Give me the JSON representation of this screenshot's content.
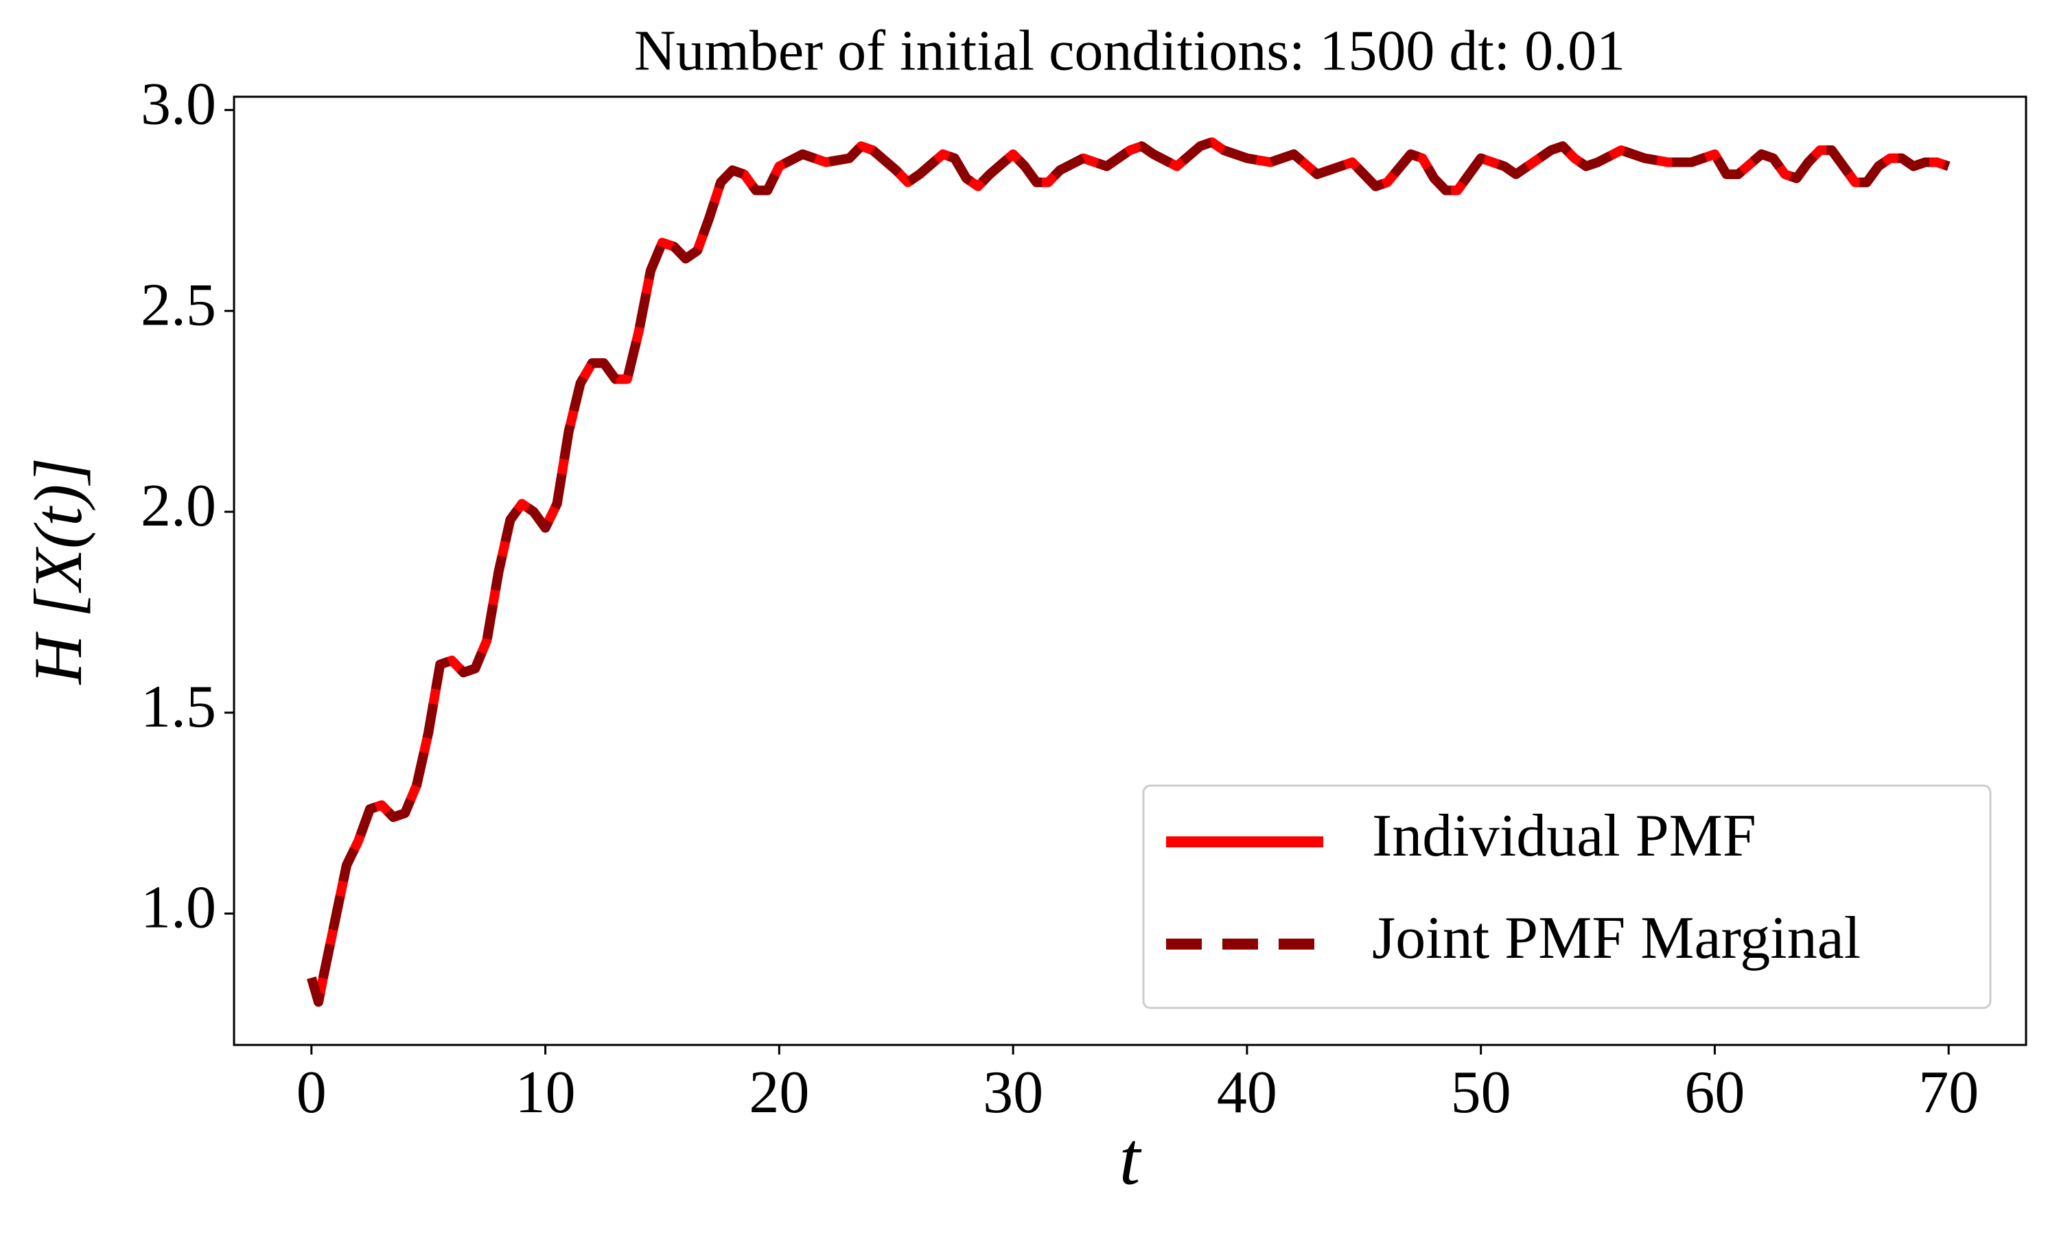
{
  "chart_data": {
    "type": "line",
    "title": "Number of initial conditions: 1500 dt: 0.01",
    "xlabel": "t",
    "ylabel": "H [X(t)]",
    "x": [
      0,
      0.3,
      0.5,
      1,
      1.5,
      2,
      2.5,
      3,
      3.5,
      4,
      4.5,
      5,
      5.5,
      6,
      6.5,
      7,
      7.5,
      8,
      8.5,
      9,
      9.5,
      10,
      10.5,
      11,
      11.5,
      12,
      12.5,
      13,
      13.5,
      14,
      14.5,
      15,
      15.5,
      16,
      16.5,
      17,
      17.5,
      18,
      18.5,
      19,
      19.5,
      20,
      21,
      22,
      23,
      23.5,
      24,
      25,
      25.5,
      26,
      27,
      27.5,
      28,
      28.5,
      29,
      30,
      30.5,
      31,
      31.5,
      32,
      33,
      34,
      35,
      35.5,
      36,
      37,
      38,
      38.5,
      39,
      40,
      41,
      42,
      43,
      44,
      44.5,
      45,
      45.5,
      46,
      47,
      47.5,
      48,
      48.5,
      49,
      50,
      51,
      51.5,
      52,
      53,
      53.5,
      54,
      54.5,
      55,
      56,
      57,
      58,
      59,
      60,
      60.5,
      61,
      62,
      62.5,
      63,
      63.5,
      64,
      64.5,
      65,
      65.5,
      66,
      66.5,
      67,
      67.5,
      68,
      68.5,
      69,
      69.5,
      70
    ],
    "series": [
      {
        "name": "Individual PMF",
        "color": "#ff0000",
        "dash": false,
        "values": [
          0.84,
          0.78,
          0.84,
          0.98,
          1.12,
          1.18,
          1.26,
          1.27,
          1.24,
          1.25,
          1.32,
          1.45,
          1.62,
          1.63,
          1.6,
          1.61,
          1.68,
          1.85,
          1.98,
          2.02,
          2.0,
          1.96,
          2.02,
          2.2,
          2.32,
          2.37,
          2.37,
          2.33,
          2.33,
          2.45,
          2.6,
          2.67,
          2.66,
          2.63,
          2.65,
          2.73,
          2.82,
          2.85,
          2.84,
          2.8,
          2.8,
          2.86,
          2.89,
          2.87,
          2.88,
          2.91,
          2.9,
          2.85,
          2.82,
          2.84,
          2.89,
          2.88,
          2.83,
          2.81,
          2.84,
          2.89,
          2.86,
          2.82,
          2.82,
          2.85,
          2.88,
          2.86,
          2.9,
          2.91,
          2.89,
          2.86,
          2.91,
          2.92,
          2.9,
          2.88,
          2.87,
          2.89,
          2.84,
          2.86,
          2.87,
          2.84,
          2.81,
          2.82,
          2.89,
          2.88,
          2.83,
          2.8,
          2.8,
          2.88,
          2.86,
          2.84,
          2.86,
          2.9,
          2.91,
          2.88,
          2.86,
          2.87,
          2.9,
          2.88,
          2.87,
          2.87,
          2.89,
          2.84,
          2.84,
          2.89,
          2.88,
          2.84,
          2.83,
          2.87,
          2.9,
          2.9,
          2.86,
          2.82,
          2.82,
          2.86,
          2.88,
          2.88,
          2.86,
          2.87,
          2.87,
          2.86
        ]
      },
      {
        "name": "Joint PMF Marginal",
        "color": "#8b0000",
        "dash": true,
        "values": [
          0.84,
          0.78,
          0.84,
          0.98,
          1.12,
          1.18,
          1.26,
          1.27,
          1.24,
          1.25,
          1.32,
          1.45,
          1.62,
          1.63,
          1.6,
          1.61,
          1.68,
          1.85,
          1.98,
          2.02,
          2.0,
          1.96,
          2.02,
          2.2,
          2.32,
          2.37,
          2.37,
          2.33,
          2.33,
          2.45,
          2.6,
          2.67,
          2.66,
          2.63,
          2.65,
          2.73,
          2.82,
          2.85,
          2.84,
          2.8,
          2.8,
          2.86,
          2.89,
          2.87,
          2.88,
          2.91,
          2.9,
          2.85,
          2.82,
          2.84,
          2.89,
          2.88,
          2.83,
          2.81,
          2.84,
          2.89,
          2.86,
          2.82,
          2.82,
          2.85,
          2.88,
          2.86,
          2.9,
          2.91,
          2.89,
          2.86,
          2.91,
          2.92,
          2.9,
          2.88,
          2.87,
          2.89,
          2.84,
          2.86,
          2.87,
          2.84,
          2.81,
          2.82,
          2.89,
          2.88,
          2.83,
          2.8,
          2.8,
          2.88,
          2.86,
          2.84,
          2.86,
          2.9,
          2.91,
          2.88,
          2.86,
          2.87,
          2.9,
          2.88,
          2.87,
          2.87,
          2.89,
          2.84,
          2.84,
          2.89,
          2.88,
          2.84,
          2.83,
          2.87,
          2.9,
          2.9,
          2.86,
          2.82,
          2.82,
          2.86,
          2.88,
          2.88,
          2.86,
          2.87,
          2.87,
          2.86
        ]
      }
    ],
    "xlim": [
      -3.31,
      73.31
    ],
    "xticks": [
      0,
      10,
      20,
      30,
      40,
      50,
      60,
      70
    ],
    "ylim": [
      0.673,
      3.033
    ],
    "yticks": [
      {
        "value": 1,
        "label": "1.0"
      },
      1.5,
      {
        "value": 2,
        "label": "2.0"
      },
      2.5,
      {
        "value": 3,
        "label": "3.0"
      }
    ],
    "legend": "lower right",
    "grid": false
  }
}
